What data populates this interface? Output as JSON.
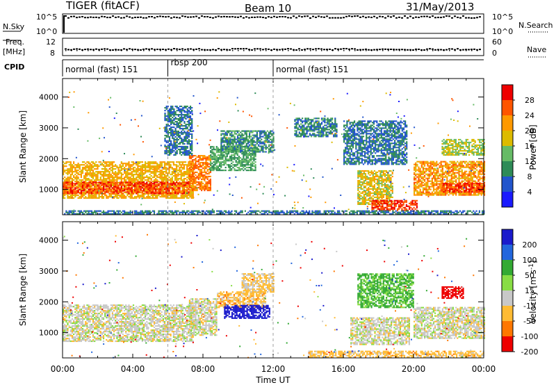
{
  "header": {
    "station": "TIGER (fitACF)",
    "beam": "Beam 10",
    "date": "31/May/2013"
  },
  "side_labels": {
    "nsky": "N.Sky",
    "freq_top": "Freq.",
    "freq_unit": "[MHz]",
    "cpid": "CPID",
    "nsearch": "N.Search",
    "nave": "Nave"
  },
  "strip_ticks": {
    "noise_left": [
      "10^5",
      "10^0"
    ],
    "noise_right": [
      "10^5",
      "10^0"
    ],
    "freq_left": [
      "12",
      "8"
    ],
    "nave_right": [
      "60",
      "0"
    ]
  },
  "cpid_blocks": [
    {
      "label": "normal (fast) 151",
      "start_hour": 0,
      "end_hour": 6
    },
    {
      "label": "rbsp 200",
      "start_hour": 6,
      "end_hour": 12
    },
    {
      "label": "normal (fast) 151",
      "start_hour": 12,
      "end_hour": 24
    }
  ],
  "colors": {
    "power_scale": [
      "#1a1aff",
      "#2255cc",
      "#2e8b57",
      "#66bb66",
      "#ddbb00",
      "#ff9900",
      "#ff5500",
      "#ee0000"
    ],
    "velocity_scale": [
      "#1a1acc",
      "#2266dd",
      "#33aa33",
      "#88dd44",
      "#c8c8c8",
      "#ffbb33",
      "#ff7700",
      "#ee0000"
    ],
    "frame": "#000000"
  },
  "chart_data": [
    {
      "type": "heatmap",
      "name": "power",
      "xlabel": "",
      "ylabel": "Slant Range [km]",
      "ytick_labels": [
        "1000",
        "2000",
        "3000",
        "4000"
      ],
      "yrange_km": [
        180,
        4600
      ],
      "colorbar_label": "Power [dB]",
      "colorbar_ticks": [
        "4",
        "8",
        "12",
        "16",
        "20",
        "24",
        "28"
      ],
      "crange_db": [
        0,
        32
      ],
      "regions": [
        {
          "t0": 0.0,
          "t1": 7.4,
          "r0": 700,
          "r1": 1900,
          "level": 20
        },
        {
          "t0": 0.0,
          "t1": 7.2,
          "r0": 850,
          "r1": 1250,
          "level": 27
        },
        {
          "t0": 7.2,
          "t1": 8.4,
          "r0": 950,
          "r1": 2100,
          "level": 24
        },
        {
          "t0": 8.4,
          "t1": 11.0,
          "r0": 1600,
          "r1": 2400,
          "level": 12
        },
        {
          "t0": 9.0,
          "t1": 12.0,
          "r0": 2200,
          "r1": 2900,
          "level": 10
        },
        {
          "t0": 5.8,
          "t1": 7.4,
          "r0": 2100,
          "r1": 3700,
          "level": 8
        },
        {
          "t0": 13.2,
          "t1": 15.6,
          "r0": 2700,
          "r1": 3300,
          "level": 9
        },
        {
          "t0": 16.0,
          "t1": 19.6,
          "r0": 1800,
          "r1": 3200,
          "level": 8
        },
        {
          "t0": 16.8,
          "t1": 18.8,
          "r0": 500,
          "r1": 1600,
          "level": 18
        },
        {
          "t0": 17.6,
          "t1": 20.2,
          "r0": 300,
          "r1": 650,
          "level": 28
        },
        {
          "t0": 20.0,
          "t1": 24.0,
          "r0": 800,
          "r1": 1900,
          "level": 22
        },
        {
          "t0": 21.6,
          "t1": 24.0,
          "r0": 900,
          "r1": 1200,
          "level": 28
        },
        {
          "t0": 21.6,
          "t1": 24.0,
          "r0": 2100,
          "r1": 2600,
          "level": 16
        },
        {
          "t0": 0.0,
          "t1": 24.0,
          "r0": 190,
          "r1": 320,
          "level": 8
        }
      ]
    },
    {
      "type": "heatmap",
      "name": "velocity",
      "xlabel": "Time UT",
      "ylabel": "Slant Range [km]",
      "xtick_labels": [
        "00:00",
        "04:00",
        "08:00",
        "12:00",
        "16:00",
        "20:00",
        "00:00"
      ],
      "xrange_hours": [
        0,
        24
      ],
      "ytick_labels": [
        "1000",
        "2000",
        "3000",
        "4000"
      ],
      "yrange_km": [
        180,
        4600
      ],
      "colorbar_label": "Velocity [m s^-1]",
      "colorbar_ticks": [
        "200",
        "100",
        "50",
        "15",
        "-15",
        "-50",
        "-100",
        "-200"
      ],
      "regions": [
        {
          "t0": 0.0,
          "t1": 7.4,
          "r0": 700,
          "r1": 1900,
          "v": 0
        },
        {
          "t0": 7.2,
          "t1": 8.8,
          "r0": 900,
          "r1": 2100,
          "v": 0
        },
        {
          "t0": 8.8,
          "t1": 11.6,
          "r0": 1800,
          "r1": 2300,
          "v": -30
        },
        {
          "t0": 9.2,
          "t1": 11.8,
          "r0": 1450,
          "r1": 1900,
          "v": 220
        },
        {
          "t0": 10.2,
          "t1": 12.0,
          "r0": 2300,
          "r1": 2900,
          "v": -20
        },
        {
          "t0": 16.4,
          "t1": 19.8,
          "r0": 600,
          "r1": 1500,
          "v": 0
        },
        {
          "t0": 16.8,
          "t1": 20.0,
          "r0": 1800,
          "r1": 2900,
          "v": 40
        },
        {
          "t0": 20.0,
          "t1": 24.0,
          "r0": 800,
          "r1": 1800,
          "v": 0
        },
        {
          "t0": 21.6,
          "t1": 22.8,
          "r0": 2100,
          "r1": 2500,
          "v": -200
        },
        {
          "t0": 14.0,
          "t1": 24.0,
          "r0": 190,
          "r1": 400,
          "v": -30
        }
      ]
    }
  ]
}
